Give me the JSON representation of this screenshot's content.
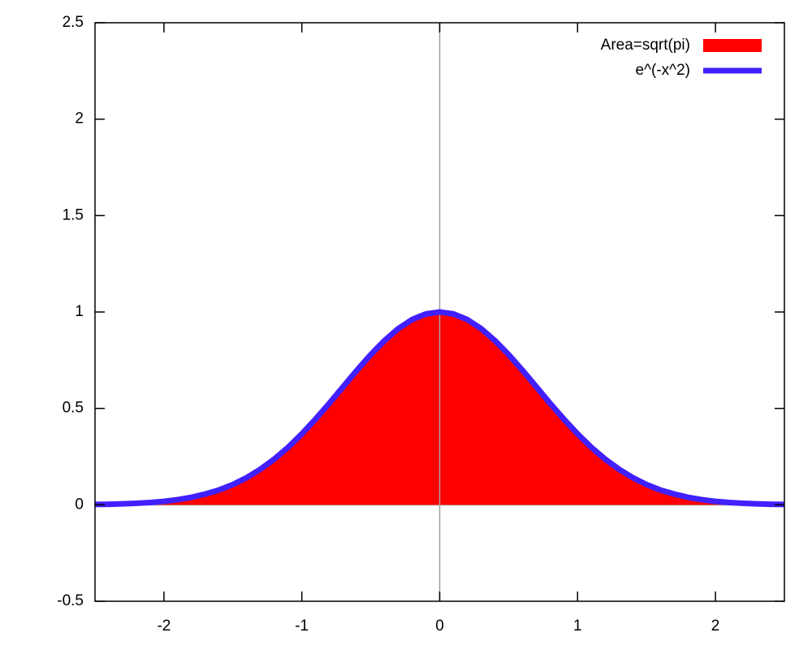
{
  "chart_data": {
    "type": "area_line",
    "x": [
      -2.5,
      -2.4,
      -2.3,
      -2.2,
      -2.1,
      -2.0,
      -1.9,
      -1.8,
      -1.7,
      -1.6,
      -1.5,
      -1.4,
      -1.3,
      -1.2,
      -1.1,
      -1.0,
      -0.9,
      -0.8,
      -0.7,
      -0.6,
      -0.5,
      -0.4,
      -0.3,
      -0.2,
      -0.1,
      0,
      0.1,
      0.2,
      0.3,
      0.4,
      0.5,
      0.6,
      0.7,
      0.8,
      0.9,
      1.0,
      1.1,
      1.2,
      1.3,
      1.4,
      1.5,
      1.6,
      1.7,
      1.8,
      1.9,
      2.0,
      2.1,
      2.2,
      2.3,
      2.4,
      2.5
    ],
    "series": [
      {
        "name": "Area=sqrt(pi)",
        "kind": "area",
        "color": "#ff0000",
        "values": [
          0.002,
          0.003,
          0.005,
          0.008,
          0.012,
          0.018,
          0.027,
          0.039,
          0.056,
          0.077,
          0.105,
          0.141,
          0.185,
          0.237,
          0.298,
          0.368,
          0.445,
          0.527,
          0.613,
          0.698,
          0.779,
          0.852,
          0.914,
          0.961,
          0.99,
          1,
          0.99,
          0.961,
          0.914,
          0.852,
          0.779,
          0.698,
          0.613,
          0.527,
          0.445,
          0.368,
          0.298,
          0.237,
          0.185,
          0.141,
          0.105,
          0.077,
          0.056,
          0.039,
          0.027,
          0.018,
          0.012,
          0.008,
          0.005,
          0.003,
          0.002
        ]
      },
      {
        "name": "e^(-x^2)",
        "kind": "line",
        "color": "#4020ff",
        "values": [
          0.002,
          0.003,
          0.005,
          0.008,
          0.012,
          0.018,
          0.027,
          0.039,
          0.056,
          0.077,
          0.105,
          0.141,
          0.185,
          0.237,
          0.298,
          0.368,
          0.445,
          0.527,
          0.613,
          0.698,
          0.779,
          0.852,
          0.914,
          0.961,
          0.99,
          1,
          0.99,
          0.961,
          0.914,
          0.852,
          0.779,
          0.698,
          0.613,
          0.527,
          0.445,
          0.368,
          0.298,
          0.237,
          0.185,
          0.141,
          0.105,
          0.077,
          0.056,
          0.039,
          0.027,
          0.018,
          0.012,
          0.008,
          0.005,
          0.003,
          0.002
        ]
      }
    ],
    "xlim": [
      -2.5,
      2.5
    ],
    "xticks": [
      -2,
      -1,
      0,
      1,
      2
    ],
    "ylim": [
      -0.5,
      2.5
    ],
    "yticks": [
      -0.5,
      0,
      0.5,
      1,
      1.5,
      2,
      2.5
    ],
    "grid": false,
    "zero_axes": true,
    "legend": "top-right"
  }
}
